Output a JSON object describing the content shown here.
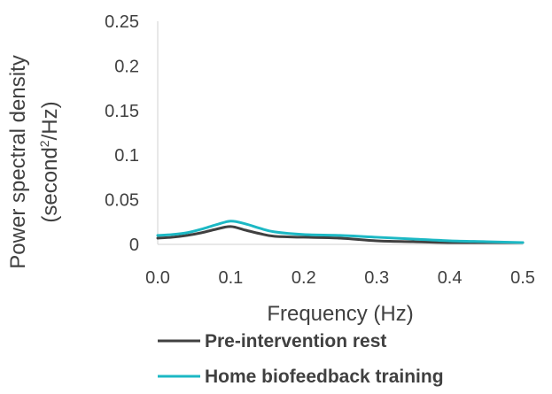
{
  "chart_data": {
    "type": "line",
    "title": "",
    "xlabel": "Frequency (Hz)",
    "ylabel_line1": "Power spectral density",
    "ylabel_line2_prefix": "(second",
    "ylabel_line2_sup": "2",
    "ylabel_line2_suffix": "/Hz)",
    "xlim": [
      0,
      0.5
    ],
    "ylim": [
      0,
      0.25
    ],
    "x_ticks": [
      "0.0",
      "0.1",
      "0.2",
      "0.3",
      "0.4",
      "0.5"
    ],
    "y_ticks": [
      "0.25",
      "0.2",
      "0.15",
      "0.1",
      "0.05",
      "0"
    ],
    "grid": false,
    "legend_position": "bottom",
    "series": [
      {
        "name": "Pre-intervention rest",
        "color": "#404040",
        "x": [
          0.0,
          0.02,
          0.04,
          0.06,
          0.08,
          0.1,
          0.12,
          0.14,
          0.16,
          0.2,
          0.25,
          0.3,
          0.35,
          0.4,
          0.45,
          0.5
        ],
        "y": [
          0.007,
          0.008,
          0.01,
          0.013,
          0.017,
          0.02,
          0.016,
          0.012,
          0.009,
          0.008,
          0.007,
          0.004,
          0.003,
          0.002,
          0.002,
          0.002
        ]
      },
      {
        "name": "Home biofeedback training",
        "color": "#1cb8c4",
        "x": [
          0.0,
          0.02,
          0.04,
          0.06,
          0.08,
          0.1,
          0.12,
          0.14,
          0.16,
          0.2,
          0.25,
          0.3,
          0.35,
          0.4,
          0.45,
          0.5
        ],
        "y": [
          0.01,
          0.011,
          0.013,
          0.017,
          0.022,
          0.026,
          0.023,
          0.018,
          0.014,
          0.011,
          0.01,
          0.008,
          0.006,
          0.004,
          0.003,
          0.002
        ]
      }
    ]
  }
}
